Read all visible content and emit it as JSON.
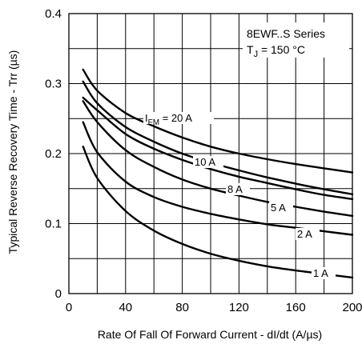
{
  "chart_data": {
    "type": "line",
    "title": "",
    "xlabel": "Rate Of Fall Of Forward Current - dI/dt (A/µs)",
    "ylabel": "Typical Reverse Recovery Time - Trr (µs)",
    "xlim": [
      0,
      200
    ],
    "ylim": [
      0,
      0.4
    ],
    "x_ticks": [
      "0",
      "40",
      "80",
      "120",
      "160",
      "200"
    ],
    "y_ticks": [
      "0",
      "0.1",
      "0.2",
      "0.3",
      "0.4"
    ],
    "grid": true,
    "annotation": {
      "series_name": "8EWF..S Series",
      "condition_prefix": "T",
      "condition_sub": "J",
      "condition_suffix": " = 150 °C"
    },
    "series": [
      {
        "label_main": "I",
        "label_sub": "FM",
        "label_tail": " = 20 A",
        "x": [
          10,
          20,
          40,
          60,
          80,
          100,
          120,
          140,
          160,
          180,
          200
        ],
        "y": [
          0.32,
          0.29,
          0.258,
          0.239,
          0.223,
          0.21,
          0.2,
          0.192,
          0.185,
          0.179,
          0.173
        ]
      },
      {
        "label_main": "10 A",
        "label_sub": "",
        "label_tail": "",
        "x": [
          10,
          20,
          40,
          60,
          80,
          100,
          120,
          140,
          160,
          180,
          200
        ],
        "y": [
          0.303,
          0.272,
          0.238,
          0.217,
          0.2,
          0.187,
          0.176,
          0.166,
          0.157,
          0.149,
          0.142
        ]
      },
      {
        "label_main": "8 A",
        "label_sub": "",
        "label_tail": "",
        "x": [
          10,
          20,
          40,
          60,
          80,
          100,
          120,
          140,
          160,
          180,
          200
        ],
        "y": [
          0.28,
          0.262,
          0.228,
          0.207,
          0.191,
          0.178,
          0.167,
          0.158,
          0.149,
          0.141,
          0.135
        ]
      },
      {
        "label_main": "5 A",
        "label_sub": "",
        "label_tail": "",
        "x": [
          10,
          20,
          40,
          60,
          80,
          100,
          120,
          140,
          160,
          180,
          200
        ],
        "y": [
          0.275,
          0.245,
          0.205,
          0.181,
          0.163,
          0.15,
          0.14,
          0.131,
          0.124,
          0.117,
          0.111
        ]
      },
      {
        "label_main": "2 A",
        "label_sub": "",
        "label_tail": "",
        "x": [
          10,
          20,
          40,
          60,
          80,
          100,
          120,
          140,
          160,
          180,
          200
        ],
        "y": [
          0.245,
          0.202,
          0.16,
          0.138,
          0.124,
          0.114,
          0.106,
          0.099,
          0.094,
          0.089,
          0.084
        ]
      },
      {
        "label_main": "1 A",
        "label_sub": "",
        "label_tail": "",
        "x": [
          10,
          20,
          40,
          60,
          80,
          100,
          120,
          140,
          160,
          180,
          200
        ],
        "y": [
          0.21,
          0.165,
          0.118,
          0.09,
          0.071,
          0.057,
          0.047,
          0.039,
          0.033,
          0.028,
          0.023
        ]
      }
    ]
  }
}
